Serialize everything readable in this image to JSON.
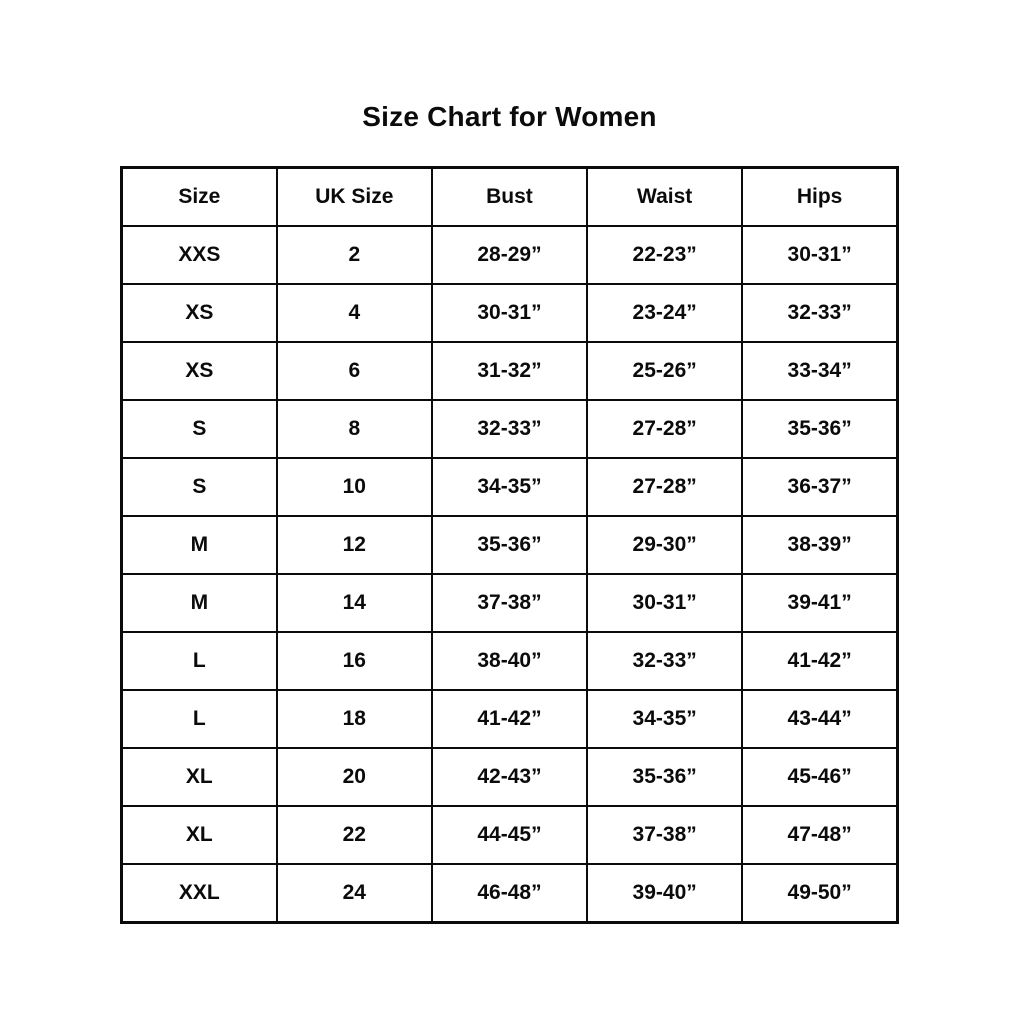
{
  "page": {
    "background_color": "#ffffff",
    "text_color": "#0b0b0b",
    "border_color": "#0b0b0b"
  },
  "chart_data": {
    "type": "table",
    "title": "Size Chart for Women",
    "columns": [
      "Size",
      "UK Size",
      "Bust",
      "Waist",
      "Hips"
    ],
    "rows": [
      [
        "XXS",
        "2",
        "28-29”",
        "22-23”",
        "30-31”"
      ],
      [
        "XS",
        "4",
        "30-31”",
        "23-24”",
        "32-33”"
      ],
      [
        "XS",
        "6",
        "31-32”",
        "25-26”",
        "33-34”"
      ],
      [
        "S",
        "8",
        "32-33”",
        "27-28”",
        "35-36”"
      ],
      [
        "S",
        "10",
        "34-35”",
        "27-28”",
        "36-37”"
      ],
      [
        "M",
        "12",
        "35-36”",
        "29-30”",
        "38-39”"
      ],
      [
        "M",
        "14",
        "37-38”",
        "30-31”",
        "39-41”"
      ],
      [
        "L",
        "16",
        "38-40”",
        "32-33”",
        "41-42”"
      ],
      [
        "L",
        "18",
        "41-42”",
        "34-35”",
        "43-44”"
      ],
      [
        "XL",
        "20",
        "42-43”",
        "35-36”",
        "45-46”"
      ],
      [
        "XL",
        "22",
        "44-45”",
        "37-38”",
        "47-48”"
      ],
      [
        "XXL",
        "24",
        "46-48”",
        "39-40”",
        "49-50”"
      ]
    ],
    "layout": {
      "grid": true,
      "header_row": true,
      "columns_equal_width": true,
      "units": "inches"
    }
  }
}
